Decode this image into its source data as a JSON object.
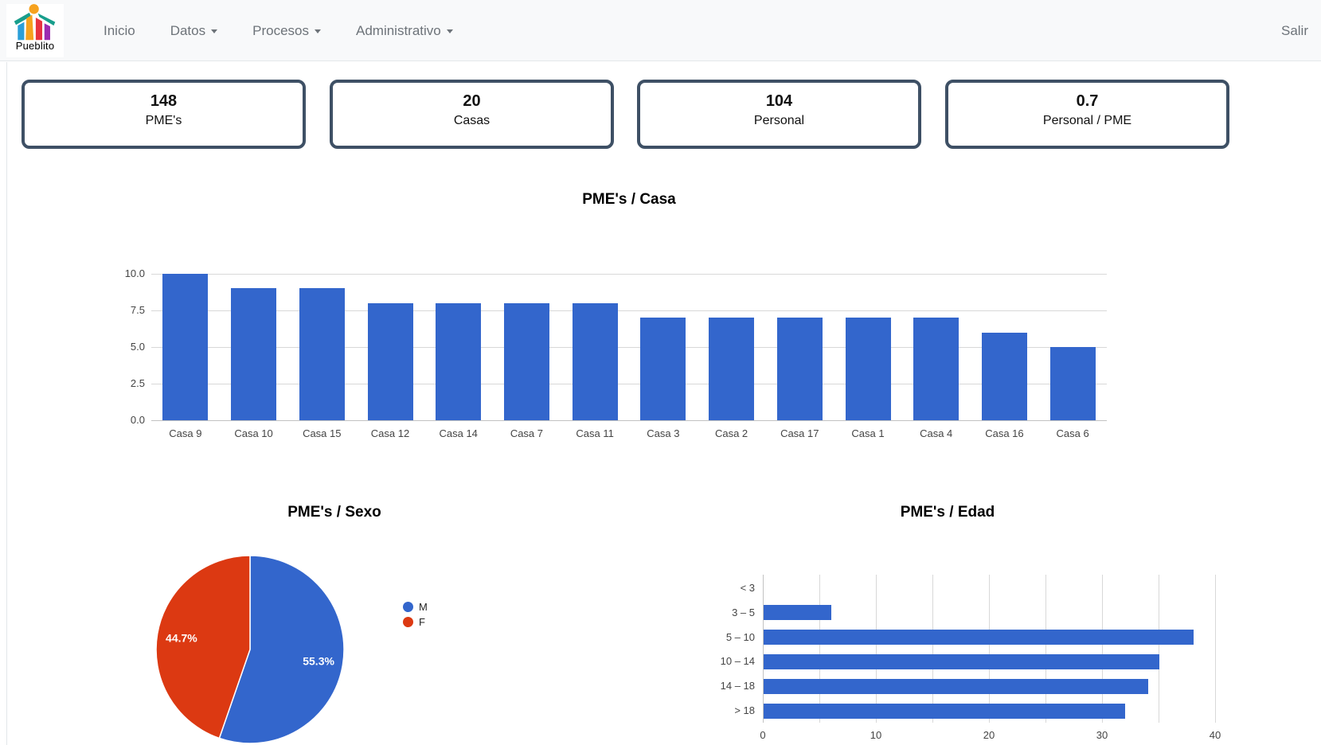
{
  "navbar": {
    "logo_text": "Pueblito",
    "items": [
      {
        "label": "Inicio",
        "dropdown": false
      },
      {
        "label": "Datos",
        "dropdown": true
      },
      {
        "label": "Procesos",
        "dropdown": true
      },
      {
        "label": "Administrativo",
        "dropdown": true
      }
    ],
    "logout_label": "Salir"
  },
  "stats": [
    {
      "value": "148",
      "label": "PME's"
    },
    {
      "value": "20",
      "label": "Casas"
    },
    {
      "value": "104",
      "label": "Personal"
    },
    {
      "value": "0.7",
      "label": "Personal / PME"
    }
  ],
  "colors": {
    "bar_blue": "#3366cc",
    "pie_red": "#dc3912",
    "card_border": "#3e5065",
    "grid": "#d8d8d8",
    "axis_text": "#444444"
  },
  "chart_data": [
    {
      "type": "bar",
      "title": "PME's / Casa",
      "categories": [
        "Casa 9",
        "Casa 10",
        "Casa 15",
        "Casa 12",
        "Casa 14",
        "Casa 7",
        "Casa 11",
        "Casa 3",
        "Casa 2",
        "Casa 17",
        "Casa 1",
        "Casa 4",
        "Casa 16",
        "Casa 6"
      ],
      "values": [
        10,
        9,
        9,
        8,
        8,
        8,
        8,
        7,
        7,
        7,
        7,
        7,
        6,
        5
      ],
      "ylim": [
        0,
        10
      ],
      "yticks": [
        0,
        2.5,
        5,
        7.5,
        10
      ],
      "ytick_labels": [
        "0.0",
        "2.5",
        "5.0",
        "7.5",
        "10.0"
      ],
      "grid": true,
      "legend": "none",
      "bar_color": "#3366cc"
    },
    {
      "type": "pie",
      "title": "PME's / Sexo",
      "slices": [
        {
          "label": "M",
          "value": 55.3,
          "display": "55.3%",
          "color": "#3366cc"
        },
        {
          "label": "F",
          "value": 44.7,
          "display": "44.7%",
          "color": "#dc3912"
        }
      ],
      "legend_position": "right"
    },
    {
      "type": "bar",
      "orientation": "horizontal",
      "title": "PME's / Edad",
      "categories": [
        "< 3",
        "3 – 5",
        "5 – 10",
        "10 – 14",
        "14 – 18",
        "> 18"
      ],
      "values": [
        0,
        6,
        38,
        35,
        34,
        32
      ],
      "xlim": [
        0,
        40
      ],
      "xticks": [
        0,
        10,
        20,
        30,
        40
      ],
      "xtick_labels": [
        "0",
        "10",
        "20",
        "30",
        "40"
      ],
      "minor_grid_step": 5,
      "bar_color": "#3366cc"
    }
  ]
}
